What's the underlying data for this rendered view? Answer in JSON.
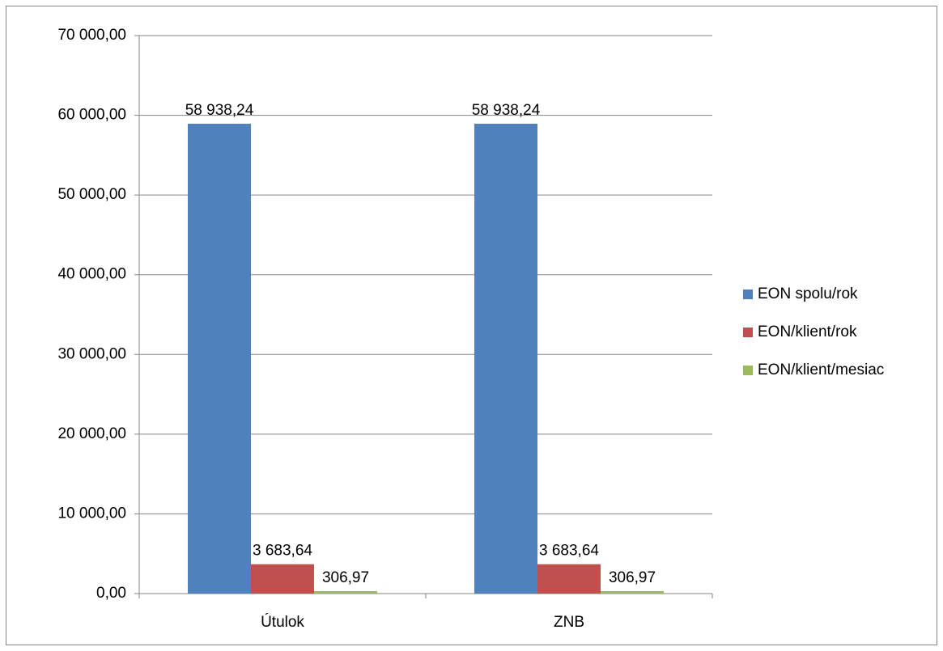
{
  "chart_data": {
    "type": "bar",
    "categories": [
      "Útulok",
      "ZNB"
    ],
    "series": [
      {
        "name": "EON spolu/rok",
        "color": "#4f81bd",
        "values": [
          58938.24,
          58938.24
        ],
        "value_labels": [
          "58 938,24",
          "58 938,24"
        ]
      },
      {
        "name": "EON/klient/rok",
        "color": "#c0504d",
        "values": [
          3683.64,
          3683.64
        ],
        "value_labels": [
          "3 683,64",
          "3 683,64"
        ]
      },
      {
        "name": "EON/klient/mesiac",
        "color": "#9bbb59",
        "values": [
          306.97,
          306.97
        ],
        "value_labels": [
          "306,97",
          "306,97"
        ]
      }
    ],
    "ylim": [
      0,
      70000
    ],
    "yticks": [
      {
        "value": 0,
        "label": "0,00"
      },
      {
        "value": 10000,
        "label": "10 000,00"
      },
      {
        "value": 20000,
        "label": "20 000,00"
      },
      {
        "value": 30000,
        "label": "30 000,00"
      },
      {
        "value": 40000,
        "label": "40 000,00"
      },
      {
        "value": 50000,
        "label": "50 000,00"
      },
      {
        "value": 60000,
        "label": "60 000,00"
      },
      {
        "value": 70000,
        "label": "70 000,00"
      }
    ],
    "grid": true,
    "legend": "right"
  }
}
